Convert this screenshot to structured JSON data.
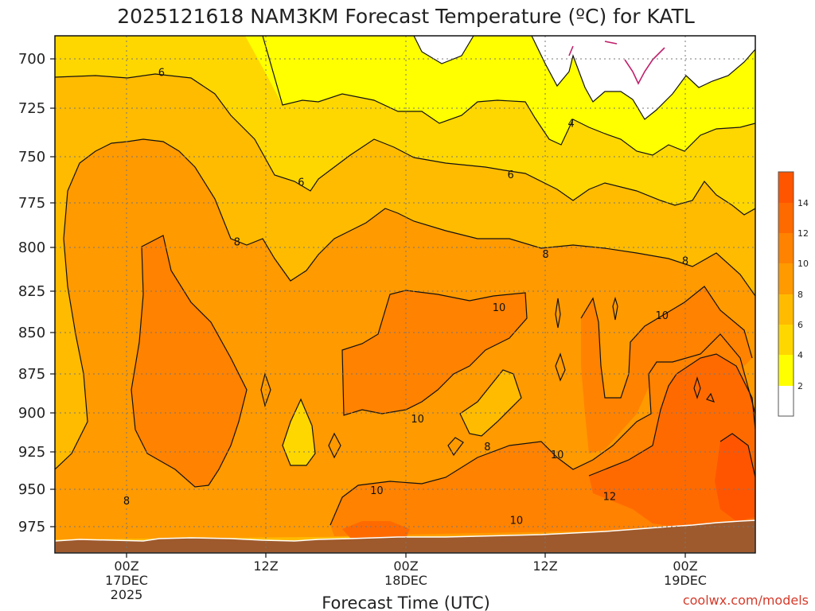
{
  "chart_data": {
    "type": "heatmap",
    "title": "2025121618 NAM3KM Forecast Temperature (ºC) for KATL",
    "xlabel": "Forecast Time (UTC)",
    "ylabel": "",
    "y_ticks": [
      "700",
      "725",
      "750",
      "775",
      "800",
      "825",
      "850",
      "875",
      "900",
      "925",
      "950",
      "975"
    ],
    "y_range": [
      688,
      985
    ],
    "y_units": "hPa",
    "x_ticks": [
      {
        "label": "00Z",
        "date": "17DEC",
        "year": "2025",
        "hour": 6
      },
      {
        "label": "12Z",
        "date": "",
        "year": "",
        "hour": 18
      },
      {
        "label": "00Z",
        "date": "18DEC",
        "year": "",
        "hour": 30
      },
      {
        "label": "12Z",
        "date": "",
        "year": "",
        "hour": 42
      },
      {
        "label": "00Z",
        "date": "19DEC",
        "year": "",
        "hour": 54
      }
    ],
    "x_range_hours": [
      0,
      60
    ],
    "contour_levels": [
      2,
      4,
      6,
      8,
      10,
      12,
      14
    ],
    "contour_labels": [
      {
        "value": "6",
        "hour": 9.0,
        "p": 707
      },
      {
        "value": "6",
        "hour": 21.0,
        "p": 764
      },
      {
        "value": "6",
        "hour": 39.0,
        "p": 760
      },
      {
        "value": "4",
        "hour": 44.2,
        "p": 733
      },
      {
        "value": "8",
        "hour": 15.5,
        "p": 797
      },
      {
        "value": "8",
        "hour": 42.0,
        "p": 804
      },
      {
        "value": "8",
        "hour": 54.0,
        "p": 808
      },
      {
        "value": "8",
        "hour": 6.0,
        "p": 958
      },
      {
        "value": "8",
        "hour": 37.0,
        "p": 922
      },
      {
        "value": "10",
        "hour": 38.0,
        "p": 835
      },
      {
        "value": "10",
        "hour": 52.0,
        "p": 840
      },
      {
        "value": "10",
        "hour": 31.0,
        "p": 904
      },
      {
        "value": "10",
        "hour": 27.5,
        "p": 951
      },
      {
        "value": "10",
        "hour": 43.0,
        "p": 927
      },
      {
        "value": "10",
        "hour": 39.5,
        "p": 971
      },
      {
        "value": "12",
        "hour": 47.5,
        "p": 955
      }
    ],
    "colorbar": {
      "ticks": [
        "14",
        "12",
        "10",
        "8",
        "6",
        "4",
        "2"
      ],
      "colors": [
        "#ffffff",
        "#ffff00",
        "#ffd700",
        "#ffbb00",
        "#ff9a00",
        "#ff8200",
        "#ff6a00",
        "#ff5500"
      ]
    },
    "credit": "coolwx.com/models"
  }
}
